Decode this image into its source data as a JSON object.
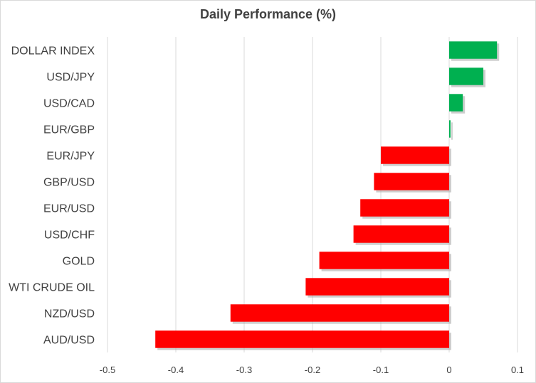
{
  "chart_data": {
    "type": "bar",
    "orientation": "horizontal",
    "title": "Daily Performance  (%)",
    "xlabel": "",
    "ylabel": "",
    "categories": [
      "DOLLAR INDEX",
      "USD/JPY",
      "USD/CAD",
      "EUR/GBP",
      "EUR/JPY",
      "GBP/USD",
      "EUR/USD",
      "USD/CHF",
      "GOLD",
      "WTI CRUDE OIL",
      "NZD/USD",
      "AUD/USD"
    ],
    "values": [
      0.07,
      0.05,
      0.02,
      0.002,
      -0.1,
      -0.11,
      -0.13,
      -0.14,
      -0.19,
      -0.21,
      -0.32,
      -0.43
    ],
    "xlim": [
      -0.5,
      0.1
    ],
    "xticks": [
      "-0.5",
      "-0.4",
      "-0.3",
      "-0.2",
      "-0.1",
      "0",
      "0.1"
    ],
    "xtick_values": [
      -0.5,
      -0.4,
      -0.3,
      -0.2,
      -0.1,
      0,
      0.1
    ],
    "grid": "vertical",
    "legend": "none",
    "colors": {
      "positive": "#00b050",
      "negative": "#ff0000",
      "shadow": "#a6a6a6",
      "grid": "#d9d9d9",
      "text": "#404040"
    }
  }
}
